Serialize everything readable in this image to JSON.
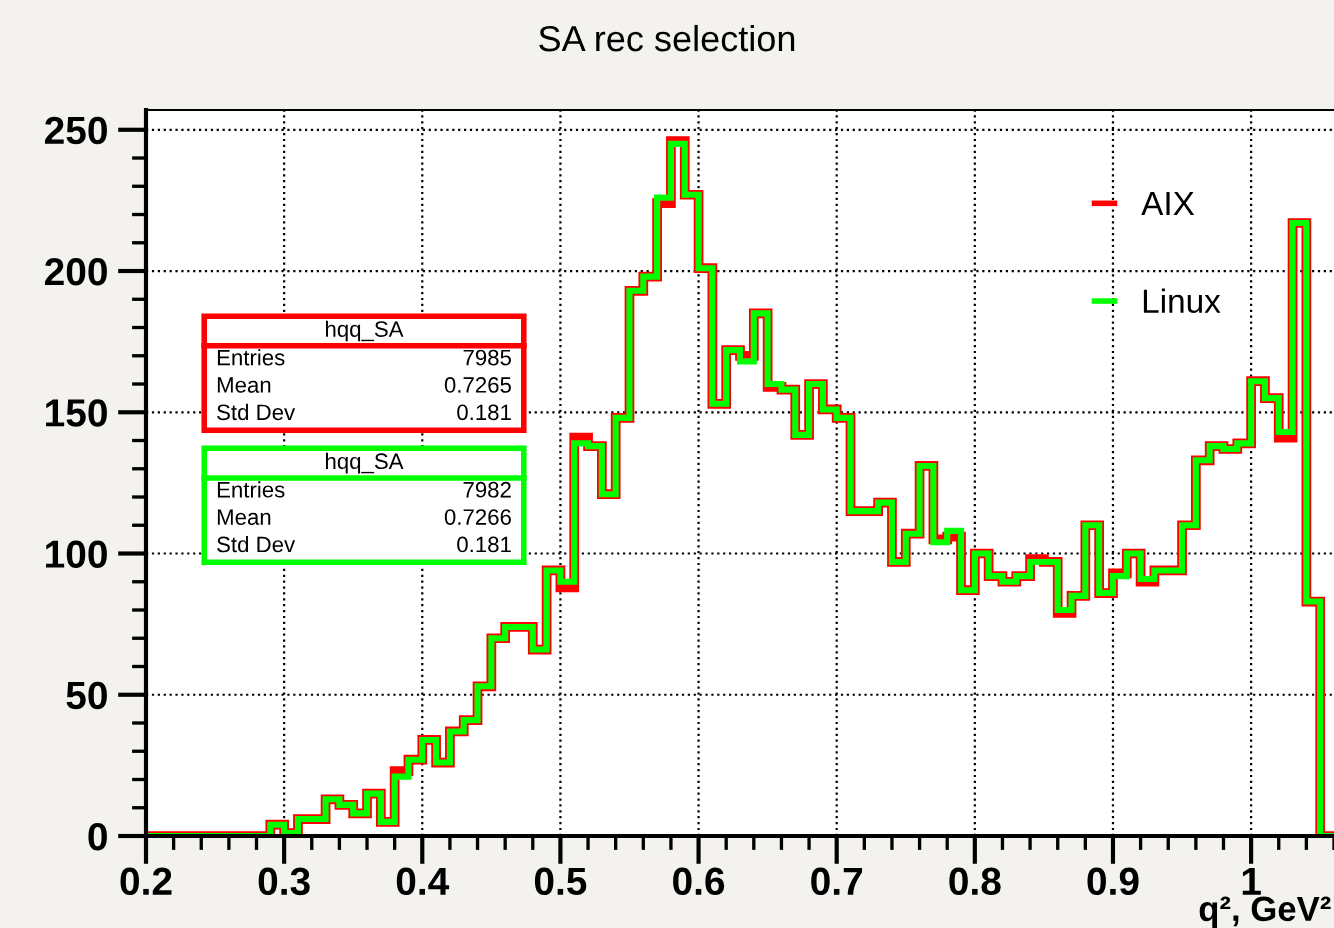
{
  "chart_data": {
    "type": "histogram",
    "title": "SA rec selection",
    "xlabel": "q², GeV²",
    "bins": [
      0.2,
      0.21,
      0.22,
      0.23,
      0.24,
      0.25,
      0.26,
      0.27,
      0.28,
      0.29,
      0.3,
      0.31,
      0.32,
      0.33,
      0.34,
      0.35,
      0.36,
      0.37,
      0.38,
      0.39,
      0.4,
      0.41,
      0.42,
      0.43,
      0.44,
      0.45,
      0.46,
      0.47,
      0.48,
      0.49,
      0.5,
      0.51,
      0.52,
      0.53,
      0.54,
      0.55,
      0.56,
      0.57,
      0.58,
      0.59,
      0.6,
      0.61,
      0.62,
      0.63,
      0.64,
      0.65,
      0.66,
      0.67,
      0.68,
      0.69,
      0.7,
      0.71,
      0.72,
      0.73,
      0.74,
      0.75,
      0.76,
      0.77,
      0.78,
      0.79,
      0.8,
      0.81,
      0.82,
      0.83,
      0.84,
      0.85,
      0.86,
      0.87,
      0.88,
      0.89,
      0.9,
      0.91,
      0.92,
      0.93,
      0.94,
      0.95,
      0.96,
      0.97,
      0.98,
      0.99,
      1.0,
      1.01,
      1.02,
      1.03,
      1.04,
      1.05,
      1.06
    ],
    "series": [
      {
        "name": "AIX",
        "color": "#ff0000",
        "values": [
          0,
          0,
          0,
          0,
          0,
          0,
          0,
          0,
          0,
          4,
          1,
          6,
          6,
          13,
          11,
          8,
          15,
          5,
          23,
          27,
          34,
          26,
          37,
          41,
          53,
          70,
          74,
          74,
          66,
          94,
          88,
          141,
          138,
          121,
          148,
          193,
          198,
          224,
          246,
          227,
          201,
          153,
          172,
          170,
          185,
          159,
          158,
          142,
          160,
          151,
          148,
          115,
          115,
          118,
          97,
          107,
          131,
          105,
          106,
          87,
          100,
          92,
          90,
          92,
          98,
          97,
          79,
          85,
          110,
          86,
          93,
          100,
          90,
          94,
          94,
          110,
          133,
          138,
          137,
          139,
          161,
          155,
          141,
          217,
          83,
          0
        ]
      },
      {
        "name": "Linux",
        "color": "#00ff00",
        "values": [
          0,
          0,
          0,
          0,
          0,
          0,
          0,
          0,
          0,
          4,
          1,
          6,
          6,
          13,
          11,
          8,
          15,
          5,
          21,
          27,
          34,
          26,
          37,
          41,
          53,
          70,
          74,
          74,
          66,
          94,
          90,
          139,
          138,
          121,
          148,
          193,
          198,
          226,
          245,
          227,
          201,
          153,
          172,
          168,
          185,
          160,
          158,
          142,
          160,
          151,
          148,
          115,
          115,
          118,
          97,
          107,
          131,
          104,
          108,
          87,
          100,
          92,
          90,
          92,
          97,
          97,
          80,
          85,
          110,
          86,
          92,
          100,
          91,
          94,
          94,
          110,
          133,
          138,
          137,
          139,
          161,
          155,
          143,
          217,
          83,
          0
        ]
      }
    ],
    "annotations": [
      "hqq_SA",
      "Entries",
      "7985",
      "Mean",
      "0.7265",
      "Std Dev",
      "0.181",
      "hqq_SA",
      "Entries",
      "7982",
      "Mean",
      "0.7266",
      "Std Dev",
      "0.181"
    ],
    "xlim": [
      0.2,
      1.06
    ],
    "ylim": [
      0,
      257
    ],
    "xticks": [
      0.2,
      0.3,
      0.4,
      0.5,
      0.6,
      0.7,
      0.8,
      0.9,
      {
        "value": 1.0,
        "label": "1"
      }
    ],
    "yticks": [
      0,
      50,
      100,
      150,
      200,
      250
    ],
    "grid": true,
    "legend": "top right"
  }
}
